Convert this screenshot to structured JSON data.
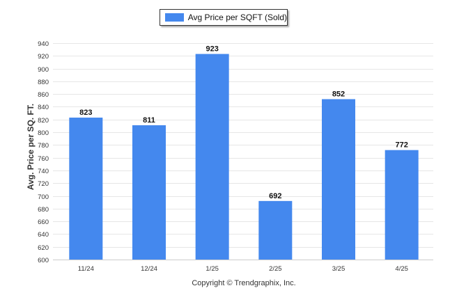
{
  "chart_data": {
    "type": "bar",
    "categories": [
      "11/24",
      "12/24",
      "1/25",
      "2/25",
      "3/25",
      "4/25"
    ],
    "series": [
      {
        "name": "Avg Price per SQFT (Sold)",
        "values": [
          823,
          811,
          923,
          692,
          852,
          772
        ]
      }
    ],
    "ylabel": "Avg. Price per SQ. FT.",
    "xlabel": "",
    "ylim": [
      600,
      940
    ],
    "yticks": [
      600,
      620,
      640,
      660,
      680,
      700,
      720,
      740,
      760,
      780,
      800,
      820,
      840,
      860,
      880,
      900,
      920,
      940
    ],
    "legend_position": "top-center",
    "grid": true,
    "bar_color": "#4488EE"
  },
  "footer": "Copyright © Trendgraphix, Inc."
}
